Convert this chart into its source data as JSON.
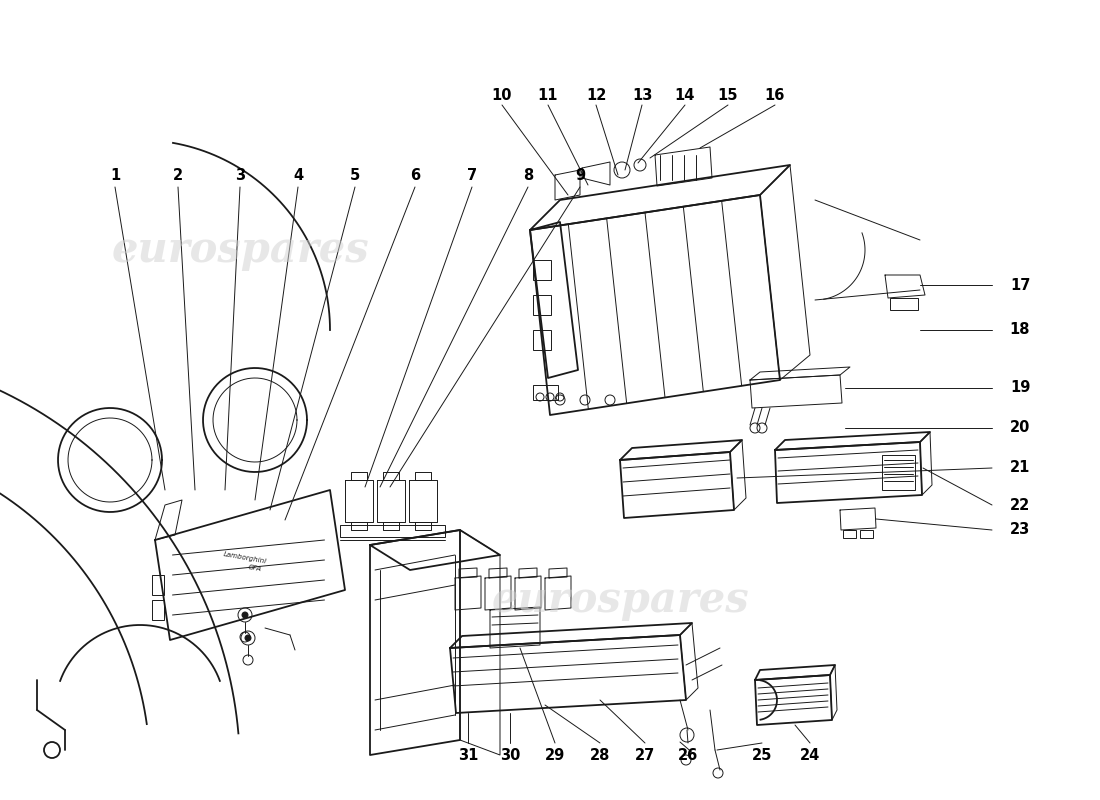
{
  "background_color": "#ffffff",
  "line_color": "#1a1a1a",
  "label_color": "#000000",
  "label_fontsize": 10.5,
  "watermark_text": "eurospares",
  "watermark_color": "#d0d0d0",
  "watermark_alpha": 0.5,
  "lw_main": 1.3,
  "lw_thin": 0.7,
  "lw_med": 1.0
}
